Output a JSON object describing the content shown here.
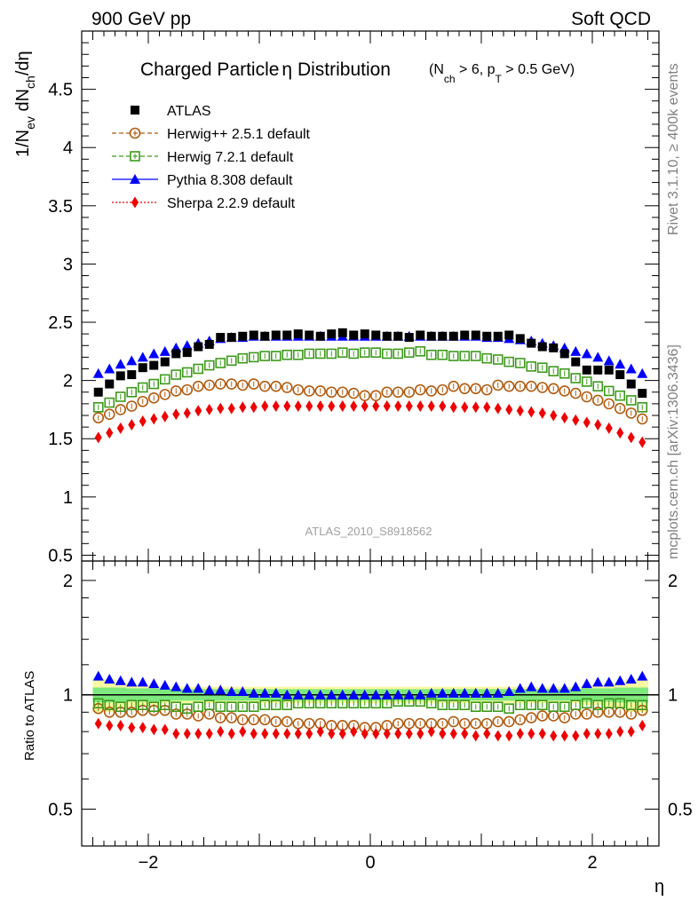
{
  "header": {
    "left": "900 GeV pp",
    "right": "Soft QCD"
  },
  "side_labels": {
    "rivet": "Rivet 3.1.10, ≥ 400k events",
    "mcplots": "mcplots.cern.ch [arXiv:1306.3436]"
  },
  "analysis_id": "ATLAS_2010_S8918562",
  "colors": {
    "atlas": "#000000",
    "herwigpp": "#b15a0e",
    "herwig7": "#3c9a1a",
    "pythia": "#0000ff",
    "sherpa": "#ee0000",
    "band_green": "#7de87d",
    "band_yellow": "#f8f8a0"
  },
  "chart_data": [
    {
      "type": "scatter",
      "title": "Charged Particle η Distribution",
      "title_parts": {
        "main": "Charged Particle",
        "eta": "η",
        "rest": " Distribution",
        "cuts": "(N_ch > 6, p_T > 0.5 GeV)"
      },
      "ylabel": "1/N_ev dN_ch/dη",
      "xlim": [
        -2.6,
        2.6
      ],
      "ylim": [
        0.45,
        5.0
      ],
      "yticks": [
        "0.5",
        "1",
        "1.5",
        "2",
        "2.5",
        "3",
        "3.5",
        "4",
        "4.5"
      ],
      "x": [
        -2.45,
        -2.35,
        -2.25,
        -2.15,
        -2.05,
        -1.95,
        -1.85,
        -1.75,
        -1.65,
        -1.55,
        -1.45,
        -1.35,
        -1.25,
        -1.15,
        -1.05,
        -0.95,
        -0.85,
        -0.75,
        -0.65,
        -0.55,
        -0.45,
        -0.35,
        -0.25,
        -0.15,
        -0.05,
        0.05,
        0.15,
        0.25,
        0.35,
        0.45,
        0.55,
        0.65,
        0.75,
        0.85,
        0.95,
        1.05,
        1.15,
        1.25,
        1.35,
        1.45,
        1.55,
        1.65,
        1.75,
        1.85,
        1.95,
        2.05,
        2.15,
        2.25,
        2.35,
        2.45
      ],
      "legend": [
        {
          "key": "atlas",
          "label": "ATLAS"
        },
        {
          "key": "herwigpp",
          "label": "Herwig++ 2.5.1 default"
        },
        {
          "key": "herwig7",
          "label": "Herwig 7.2.1 default"
        },
        {
          "key": "pythia",
          "label": "Pythia 8.308 default"
        },
        {
          "key": "sherpa",
          "label": "Sherpa 2.2.9 default"
        }
      ],
      "series": [
        {
          "name": "ATLAS",
          "key": "atlas",
          "marker": "square",
          "values": [
            1.9,
            1.97,
            2.04,
            2.05,
            2.11,
            2.13,
            2.16,
            2.23,
            2.24,
            2.29,
            2.31,
            2.37,
            2.37,
            2.38,
            2.39,
            2.38,
            2.39,
            2.39,
            2.4,
            2.39,
            2.38,
            2.4,
            2.41,
            2.39,
            2.4,
            2.39,
            2.38,
            2.38,
            2.37,
            2.39,
            2.38,
            2.38,
            2.38,
            2.39,
            2.39,
            2.38,
            2.38,
            2.39,
            2.36,
            2.32,
            2.29,
            2.28,
            2.23,
            2.16,
            2.09,
            2.09,
            2.09,
            2.05,
            1.97,
            1.89
          ]
        },
        {
          "name": "Herwig++ 2.5.1 default",
          "key": "herwigpp",
          "marker": "circle-open",
          "values": [
            1.68,
            1.71,
            1.75,
            1.78,
            1.82,
            1.85,
            1.88,
            1.91,
            1.92,
            1.95,
            1.96,
            1.97,
            1.97,
            1.96,
            1.97,
            1.95,
            1.95,
            1.94,
            1.92,
            1.91,
            1.91,
            1.9,
            1.9,
            1.89,
            1.87,
            1.87,
            1.9,
            1.9,
            1.9,
            1.92,
            1.91,
            1.92,
            1.95,
            1.93,
            1.93,
            1.92,
            1.96,
            1.95,
            1.95,
            1.95,
            1.94,
            1.93,
            1.91,
            1.89,
            1.86,
            1.83,
            1.8,
            1.76,
            1.72,
            1.67
          ]
        },
        {
          "name": "Herwig 7.2.1 default",
          "key": "herwig7",
          "marker": "square-open",
          "values": [
            1.77,
            1.81,
            1.86,
            1.9,
            1.94,
            1.97,
            2.01,
            2.05,
            2.07,
            2.1,
            2.13,
            2.15,
            2.17,
            2.19,
            2.2,
            2.21,
            2.21,
            2.22,
            2.22,
            2.23,
            2.23,
            2.23,
            2.24,
            2.23,
            2.24,
            2.24,
            2.23,
            2.23,
            2.24,
            2.25,
            2.22,
            2.22,
            2.21,
            2.21,
            2.21,
            2.19,
            2.18,
            2.16,
            2.15,
            2.12,
            2.11,
            2.08,
            2.06,
            2.02,
            1.99,
            1.95,
            1.91,
            1.87,
            1.83,
            1.77
          ]
        },
        {
          "name": "Pythia 8.308 default",
          "key": "pythia",
          "marker": "triangle",
          "values": [
            2.06,
            2.1,
            2.14,
            2.17,
            2.2,
            2.23,
            2.25,
            2.28,
            2.3,
            2.32,
            2.34,
            2.36,
            2.37,
            2.37,
            2.38,
            2.38,
            2.38,
            2.38,
            2.38,
            2.38,
            2.38,
            2.38,
            2.38,
            2.38,
            2.38,
            2.38,
            2.38,
            2.38,
            2.38,
            2.38,
            2.38,
            2.38,
            2.38,
            2.38,
            2.38,
            2.37,
            2.37,
            2.36,
            2.35,
            2.34,
            2.32,
            2.3,
            2.28,
            2.25,
            2.23,
            2.2,
            2.17,
            2.14,
            2.1,
            2.06
          ]
        },
        {
          "name": "Sherpa 2.2.9 default",
          "key": "sherpa",
          "marker": "diamond",
          "values": [
            1.51,
            1.55,
            1.59,
            1.62,
            1.65,
            1.67,
            1.69,
            1.71,
            1.72,
            1.74,
            1.75,
            1.76,
            1.76,
            1.77,
            1.77,
            1.78,
            1.78,
            1.78,
            1.78,
            1.78,
            1.78,
            1.78,
            1.78,
            1.78,
            1.78,
            1.78,
            1.78,
            1.78,
            1.78,
            1.78,
            1.78,
            1.78,
            1.77,
            1.77,
            1.77,
            1.77,
            1.76,
            1.75,
            1.74,
            1.73,
            1.72,
            1.7,
            1.68,
            1.66,
            1.64,
            1.62,
            1.59,
            1.55,
            1.51,
            1.47
          ]
        }
      ]
    },
    {
      "type": "scatter",
      "title": "Ratio to ATLAS",
      "ylabel": "Ratio to ATLAS",
      "xlabel": "η",
      "xlim": [
        -2.6,
        2.6
      ],
      "ylim": [
        0.4,
        2.25
      ],
      "ytick_labels": [
        "0.5",
        "1",
        "2"
      ],
      "xticks": [
        "−2",
        "0",
        "2"
      ],
      "reference": 1.0,
      "uncertainty_band": {
        "inner_green": [
          0.045,
          0.045,
          0.045,
          0.04,
          0.04,
          0.04,
          0.035,
          0.035,
          0.035,
          0.035,
          0.035,
          0.035,
          0.035,
          0.035,
          0.035,
          0.035,
          0.035,
          0.035,
          0.035,
          0.035,
          0.035,
          0.035,
          0.035,
          0.035,
          0.035,
          0.035,
          0.035,
          0.035,
          0.035,
          0.035,
          0.035,
          0.035,
          0.035,
          0.035,
          0.035,
          0.035,
          0.035,
          0.035,
          0.035,
          0.035,
          0.035,
          0.035,
          0.035,
          0.035,
          0.04,
          0.04,
          0.04,
          0.045,
          0.045,
          0.045
        ],
        "outer_yellow": [
          0.1,
          0.1,
          0.08,
          0.07,
          0.06,
          0.06,
          0.05,
          0.05,
          0.05,
          0.05,
          0.05,
          0.05,
          0.05,
          0.05,
          0.05,
          0.05,
          0.05,
          0.05,
          0.05,
          0.05,
          0.05,
          0.05,
          0.05,
          0.05,
          0.05,
          0.05,
          0.05,
          0.05,
          0.05,
          0.05,
          0.05,
          0.05,
          0.05,
          0.05,
          0.05,
          0.05,
          0.05,
          0.05,
          0.05,
          0.05,
          0.05,
          0.05,
          0.05,
          0.05,
          0.06,
          0.06,
          0.07,
          0.08,
          0.1,
          0.1
        ]
      },
      "series": [
        {
          "name": "Herwig++ 2.5.1 default",
          "key": "herwigpp",
          "marker": "circle-open",
          "values": [
            0.92,
            0.9,
            0.9,
            0.9,
            0.91,
            0.91,
            0.91,
            0.89,
            0.89,
            0.88,
            0.89,
            0.87,
            0.87,
            0.86,
            0.86,
            0.86,
            0.85,
            0.85,
            0.84,
            0.84,
            0.84,
            0.83,
            0.83,
            0.83,
            0.82,
            0.82,
            0.83,
            0.84,
            0.84,
            0.84,
            0.84,
            0.84,
            0.85,
            0.84,
            0.84,
            0.84,
            0.85,
            0.85,
            0.86,
            0.87,
            0.88,
            0.88,
            0.87,
            0.89,
            0.89,
            0.9,
            0.9,
            0.9,
            0.89,
            0.91
          ]
        },
        {
          "name": "Herwig 7.2.1 default",
          "key": "herwig7",
          "marker": "square-open",
          "values": [
            0.95,
            0.94,
            0.93,
            0.94,
            0.94,
            0.93,
            0.94,
            0.93,
            0.92,
            0.93,
            0.94,
            0.93,
            0.93,
            0.93,
            0.93,
            0.94,
            0.94,
            0.94,
            0.95,
            0.95,
            0.95,
            0.95,
            0.95,
            0.95,
            0.95,
            0.95,
            0.95,
            0.96,
            0.96,
            0.96,
            0.95,
            0.94,
            0.94,
            0.94,
            0.93,
            0.93,
            0.93,
            0.92,
            0.94,
            0.94,
            0.94,
            0.93,
            0.93,
            0.94,
            0.95,
            0.94,
            0.95,
            0.95,
            0.94,
            0.94
          ]
        },
        {
          "name": "Pythia 8.308 default",
          "key": "pythia",
          "marker": "triangle",
          "values": [
            1.12,
            1.1,
            1.09,
            1.08,
            1.08,
            1.07,
            1.06,
            1.05,
            1.04,
            1.04,
            1.03,
            1.03,
            1.02,
            1.02,
            1.01,
            1.01,
            1.01,
            1.0,
            1.0,
            1.0,
            1.0,
            1.0,
            1.0,
            1.0,
            1.0,
            1.0,
            1.0,
            1.0,
            1.0,
            1.0,
            1.01,
            1.01,
            1.01,
            1.01,
            1.01,
            1.01,
            1.01,
            1.02,
            1.04,
            1.05,
            1.04,
            1.04,
            1.04,
            1.05,
            1.07,
            1.08,
            1.08,
            1.09,
            1.1,
            1.12
          ]
        },
        {
          "name": "Sherpa 2.2.9 default",
          "key": "sherpa",
          "marker": "diamond",
          "values": [
            0.84,
            0.83,
            0.83,
            0.82,
            0.82,
            0.81,
            0.81,
            0.79,
            0.79,
            0.79,
            0.79,
            0.8,
            0.79,
            0.8,
            0.79,
            0.79,
            0.79,
            0.79,
            0.79,
            0.79,
            0.8,
            0.79,
            0.79,
            0.8,
            0.79,
            0.79,
            0.79,
            0.79,
            0.79,
            0.79,
            0.8,
            0.79,
            0.79,
            0.79,
            0.78,
            0.79,
            0.78,
            0.78,
            0.79,
            0.79,
            0.79,
            0.78,
            0.78,
            0.78,
            0.79,
            0.79,
            0.79,
            0.8,
            0.8,
            0.83
          ]
        }
      ]
    }
  ]
}
